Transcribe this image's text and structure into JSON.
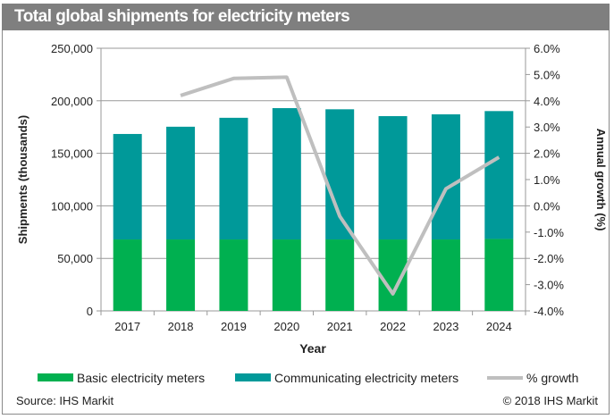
{
  "chart_data": {
    "type": "bar",
    "title": "Total global shipments for electricity meters",
    "xlabel": "Year",
    "ylabel": "Shipments (thousands)",
    "y2label": "Annual growth (%)",
    "categories": [
      "2017",
      "2018",
      "2019",
      "2020",
      "2021",
      "2022",
      "2023",
      "2024"
    ],
    "ylim": [
      0,
      250000
    ],
    "yticks": [
      0,
      50000,
      100000,
      150000,
      200000,
      250000
    ],
    "ytick_labels": [
      "0",
      "50,000",
      "100,000",
      "150,000",
      "200,000",
      "250,000"
    ],
    "y2lim": [
      -4.0,
      6.0
    ],
    "y2ticks": [
      -4,
      -3,
      -2,
      -1,
      0,
      1,
      2,
      3,
      4,
      5,
      6
    ],
    "y2tick_labels": [
      "-4.0%",
      "-3.0%",
      "-2.0%",
      "-1.0%",
      "0.0%",
      "1.0%",
      "2.0%",
      "3.0%",
      "4.0%",
      "5.0%",
      "6.0%"
    ],
    "grid": "horizontal",
    "stacked": true,
    "legend_position": "bottom",
    "series": [
      {
        "name": "Basic electricity meters",
        "type": "bar",
        "color": "#00b050",
        "values": [
          68000,
          68000,
          68000,
          68000,
          68000,
          68000,
          68000,
          68500
        ]
      },
      {
        "name": "Communicating electricity meters",
        "type": "bar",
        "color": "#009999",
        "values": [
          100400,
          107300,
          115800,
          125000,
          123900,
          117400,
          119100,
          121700
        ]
      },
      {
        "name": "% growth",
        "type": "line",
        "axis": "right",
        "color": "#bfbfbf",
        "values": [
          null,
          4.2,
          4.85,
          4.9,
          -0.4,
          -3.35,
          0.65,
          1.85
        ]
      }
    ]
  },
  "footer": {
    "source": "Source: IHS Markit",
    "copyright": "© 2018 IHS Markit"
  }
}
